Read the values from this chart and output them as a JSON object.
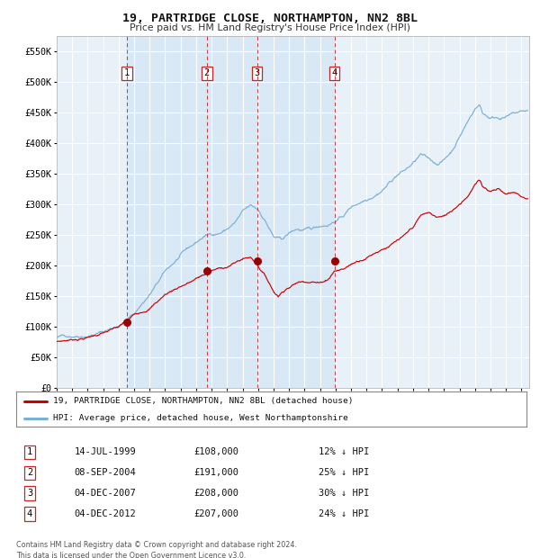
{
  "title": "19, PARTRIDGE CLOSE, NORTHAMPTON, NN2 8BL",
  "subtitle": "Price paid vs. HM Land Registry's House Price Index (HPI)",
  "background_color": "#ffffff",
  "plot_bg_color": "#e8f0f8",
  "grid_color": "#ffffff",
  "hpi_color": "#7ab0d4",
  "price_color": "#cc0000",
  "span_color": "#d8e8f5",
  "transactions": [
    {
      "num": 1,
      "date_str": "14-JUL-1999",
      "date_x": 1999.54,
      "price": 108000,
      "hpi_pct": "12% ↓ HPI"
    },
    {
      "num": 2,
      "date_str": "08-SEP-2004",
      "date_x": 2004.69,
      "price": 191000,
      "hpi_pct": "25% ↓ HPI"
    },
    {
      "num": 3,
      "date_str": "04-DEC-2007",
      "date_x": 2007.93,
      "price": 208000,
      "hpi_pct": "30% ↓ HPI"
    },
    {
      "num": 4,
      "date_str": "04-DEC-2012",
      "date_x": 2012.93,
      "price": 207000,
      "hpi_pct": "24% ↓ HPI"
    }
  ],
  "legend_label_price": "19, PARTRIDGE CLOSE, NORTHAMPTON, NN2 8BL (detached house)",
  "legend_label_hpi": "HPI: Average price, detached house, West Northamptonshire",
  "footnote": "Contains HM Land Registry data © Crown copyright and database right 2024.\nThis data is licensed under the Open Government Licence v3.0.",
  "ylim": [
    0,
    575000
  ],
  "xlim_start": 1995.0,
  "xlim_end": 2025.5,
  "yticks": [
    0,
    50000,
    100000,
    150000,
    200000,
    250000,
    300000,
    350000,
    400000,
    450000,
    500000,
    550000
  ],
  "ytick_labels": [
    "£0",
    "£50K",
    "£100K",
    "£150K",
    "£200K",
    "£250K",
    "£300K",
    "£350K",
    "£400K",
    "£450K",
    "£500K",
    "£550K"
  ]
}
